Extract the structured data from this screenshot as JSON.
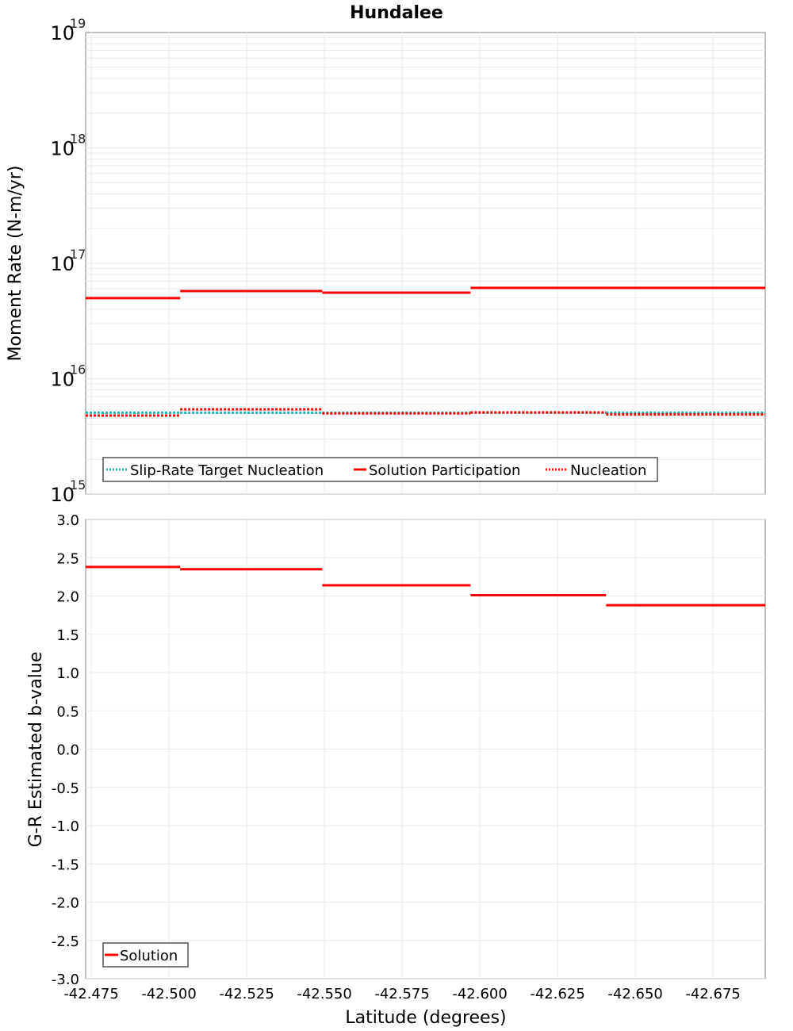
{
  "title": "Hundalee",
  "chart_data": [
    {
      "type": "line",
      "title": "Hundalee",
      "xlabel": "Latitude (degrees)",
      "ylabel": "Moment Rate (N-m/yr)",
      "yscale": "log",
      "ylim": [
        1000000000000000.0,
        1e+19
      ],
      "xlim": [
        -42.4732,
        -42.6918
      ],
      "grid": true,
      "legend_position": "lower-left",
      "y_ticks": [
        {
          "base": "10",
          "exp": "19",
          "value": 1e+19
        },
        {
          "base": "10",
          "exp": "18",
          "value": 1e+18
        },
        {
          "base": "10",
          "exp": "17",
          "value": 1e+17
        },
        {
          "base": "10",
          "exp": "16",
          "value": 1e+16
        },
        {
          "base": "10",
          "exp": "15",
          "value": 1000000000000000.0
        }
      ],
      "segment_edges": [
        -42.4732,
        -42.5036,
        -42.5493,
        -42.597,
        -42.6406,
        -42.6918
      ],
      "series": [
        {
          "name": "Slip-Rate Target Nucleation",
          "color": "#1ab3b3",
          "style": "dotted",
          "values": [
            5070000000000000.0,
            5070000000000000.0,
            5070000000000000.0,
            5070000000000000.0,
            5070000000000000.0
          ]
        },
        {
          "name": "Solution Participation",
          "color": "#ff0000",
          "style": "solid",
          "values": [
            4.99e+16,
            5.75e+16,
            5.57e+16,
            6.12e+16,
            6.12e+16
          ]
        },
        {
          "name": "Nucleation",
          "color": "#ff0000",
          "style": "dotted",
          "values": [
            4790000000000000.0,
            5430000000000000.0,
            5000000000000000.0,
            5100000000000000.0,
            4900000000000000.0
          ]
        }
      ]
    },
    {
      "type": "line",
      "title": "",
      "xlabel": "Latitude (degrees)",
      "ylabel": "G-R Estimated b-value",
      "ylim": [
        -3.0,
        3.0
      ],
      "xlim": [
        -42.4732,
        -42.6918
      ],
      "grid": true,
      "legend_position": "lower-left",
      "y_ticks": [
        "3.0",
        "2.5",
        "2.0",
        "1.5",
        "1.0",
        "0.5",
        "0.0",
        "-0.5",
        "-1.0",
        "-1.5",
        "-2.0",
        "-2.5",
        "-3.0"
      ],
      "x_ticks": [
        "-42.475",
        "-42.500",
        "-42.525",
        "-42.550",
        "-42.575",
        "-42.600",
        "-42.625",
        "-42.650",
        "-42.675"
      ],
      "segment_edges": [
        -42.4732,
        -42.5036,
        -42.5493,
        -42.597,
        -42.6406,
        -42.6918
      ],
      "series": [
        {
          "name": "Solution",
          "color": "#ff0000",
          "style": "solid",
          "values": [
            2.38,
            2.35,
            2.14,
            2.01,
            1.88
          ]
        }
      ]
    }
  ],
  "top_legend": [
    "Slip-Rate Target Nucleation",
    "Solution Participation",
    "Nucleation"
  ],
  "bottom_legend": [
    "Solution"
  ]
}
